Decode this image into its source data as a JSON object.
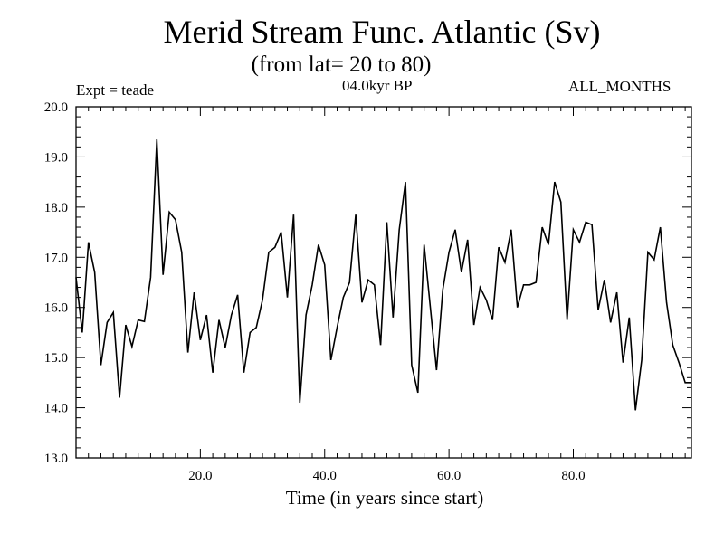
{
  "chart_data": {
    "type": "line",
    "title": "Merid Stream Func. Atlantic (Sv)",
    "subtitle": "(from lat= 20 to 80)",
    "annotations": {
      "left": "Expt = teade",
      "center": "04.0kyr BP",
      "right": "ALL_MONTHS"
    },
    "xlabel": "Time (in years since start)",
    "ylabel": "",
    "xlim": [
      0,
      99
    ],
    "ylim": [
      13.0,
      20.0
    ],
    "x_ticks": [
      20,
      40,
      60,
      80
    ],
    "x_tick_labels": [
      "20.0",
      "40.0",
      "60.0",
      "80.0"
    ],
    "y_ticks": [
      13,
      14,
      15,
      16,
      17,
      18,
      19,
      20
    ],
    "y_tick_labels": [
      "13.0",
      "14.0",
      "15.0",
      "16.0",
      "17.0",
      "18.0",
      "19.0",
      "20.0"
    ],
    "grid": false,
    "series": [
      {
        "name": "Atlantic",
        "x": [
          0,
          1,
          2,
          3,
          4,
          5,
          6,
          7,
          8,
          9,
          10,
          11,
          12,
          13,
          14,
          15,
          16,
          17,
          18,
          19,
          20,
          21,
          22,
          23,
          24,
          25,
          26,
          27,
          28,
          29,
          30,
          31,
          32,
          33,
          34,
          35,
          36,
          37,
          38,
          39,
          40,
          41,
          42,
          43,
          44,
          45,
          46,
          47,
          48,
          49,
          50,
          51,
          52,
          53,
          54,
          55,
          56,
          57,
          58,
          59,
          60,
          61,
          62,
          63,
          64,
          65,
          66,
          67,
          68,
          69,
          70,
          71,
          72,
          73,
          74,
          75,
          76,
          77,
          78,
          79,
          80,
          81,
          82,
          83,
          84,
          85,
          86,
          87,
          88,
          89,
          90,
          91,
          92,
          93,
          94,
          95,
          96,
          97,
          98,
          99
        ],
        "values": [
          16.6,
          15.5,
          17.3,
          16.7,
          14.85,
          15.7,
          15.9,
          14.2,
          15.65,
          15.22,
          15.75,
          15.72,
          16.6,
          19.35,
          16.65,
          17.9,
          17.75,
          17.1,
          15.1,
          16.3,
          15.35,
          15.85,
          14.7,
          15.75,
          15.2,
          15.85,
          16.25,
          14.7,
          15.5,
          15.6,
          16.15,
          17.1,
          17.2,
          17.5,
          16.2,
          17.85,
          14.1,
          15.85,
          16.45,
          17.25,
          16.85,
          14.95,
          15.6,
          16.2,
          16.5,
          17.85,
          16.1,
          16.55,
          16.45,
          15.25,
          17.7,
          15.8,
          17.55,
          18.5,
          14.85,
          14.3,
          17.25,
          16.0,
          14.75,
          16.35,
          17.1,
          17.55,
          16.7,
          17.35,
          15.65,
          16.4,
          16.15,
          15.75,
          17.2,
          16.9,
          17.55,
          16.0,
          16.45,
          16.45,
          16.5,
          17.6,
          17.25,
          18.5,
          18.1,
          15.75,
          17.55,
          17.3,
          17.7,
          17.65,
          15.95,
          16.55,
          15.7,
          16.3,
          14.9,
          15.8,
          13.95,
          14.95,
          17.1,
          16.95,
          17.6,
          16.1,
          15.25,
          14.9,
          14.5,
          14.5
        ]
      }
    ]
  }
}
